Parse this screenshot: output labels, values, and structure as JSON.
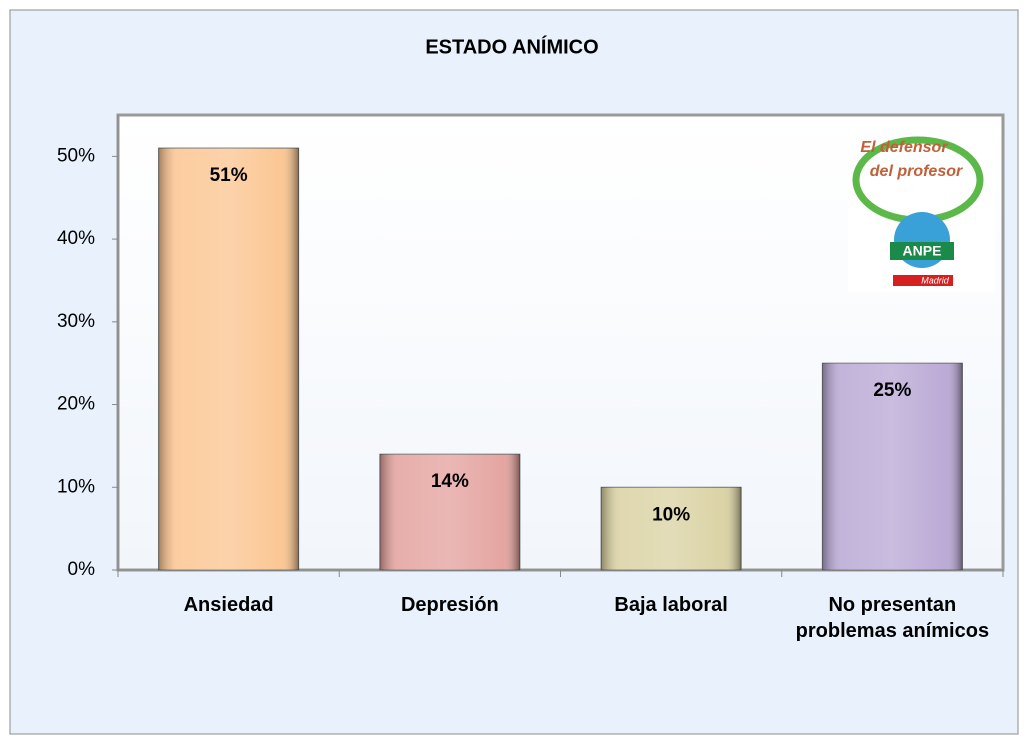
{
  "chart_data": {
    "type": "bar",
    "title": "ESTADO ANÍMICO",
    "categories": [
      "Ansiedad",
      "Depresión",
      "Baja laboral",
      "No presentan problemas anímicos"
    ],
    "values": [
      51,
      14,
      10,
      25
    ],
    "value_labels": [
      "51%",
      "14%",
      "10%",
      "25%"
    ],
    "colors": [
      "#fbc48e",
      "#e3a09c",
      "#d9d1a1",
      "#b8a6d4"
    ],
    "ylim": [
      0,
      55
    ],
    "yticks": [
      {
        "value": 0,
        "label": "0%"
      },
      {
        "value": 10,
        "label": "10%"
      },
      {
        "value": 20,
        "label": "20%"
      },
      {
        "value": 30,
        "label": "30%"
      },
      {
        "value": 40,
        "label": "40%"
      },
      {
        "value": 50,
        "label": "50%"
      }
    ],
    "grid": false,
    "logo": {
      "line1": "El defensor",
      "line2": "del profesor",
      "brand": "ANPE",
      "region": "Madrid"
    }
  }
}
